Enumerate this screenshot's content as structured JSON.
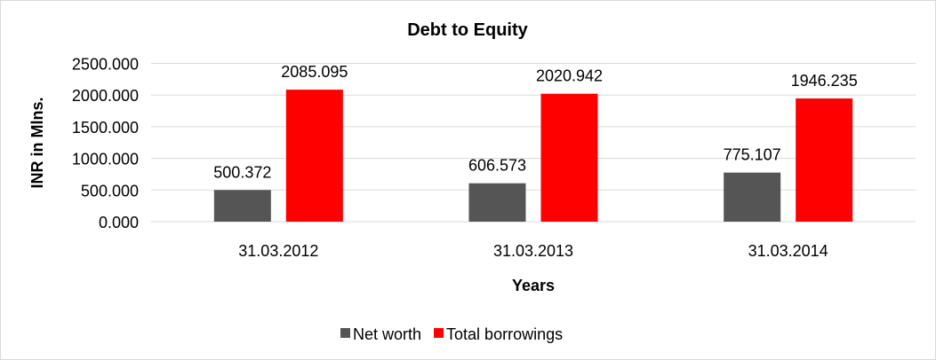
{
  "chart_data": {
    "type": "bar",
    "title": "Debt to Equity",
    "xlabel": "Years",
    "ylabel": "INR in Mlns.",
    "categories": [
      "31.03.2012",
      "31.03.2013",
      "31.03.2014"
    ],
    "series": [
      {
        "name": "Net worth",
        "color": "#555555",
        "values": [
          500.372,
          606.573,
          775.107
        ],
        "labels": [
          "500.372",
          "606.573",
          "775.107"
        ]
      },
      {
        "name": "Total borrowings",
        "color": "#FF0000",
        "values": [
          2085.095,
          2020.942,
          1946.235
        ],
        "labels": [
          "2085.095",
          "2020.942",
          "1946.235"
        ]
      }
    ],
    "ylim": [
      0,
      2500
    ],
    "yticks": [
      0,
      500,
      1000,
      1500,
      2000,
      2500
    ],
    "ytick_labels": [
      "0.000",
      "500.000",
      "1000.000",
      "1500.000",
      "2000.000",
      "2500.000"
    ],
    "grid": true,
    "legend_position": "bottom"
  }
}
